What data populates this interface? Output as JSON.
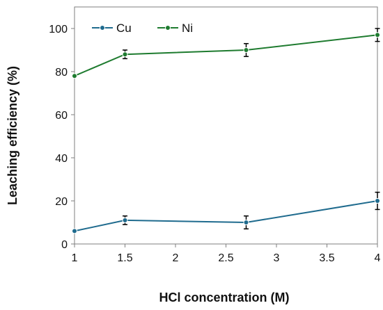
{
  "chart_data": {
    "type": "line",
    "title": "",
    "xlabel": "HCl concentration (M)",
    "ylabel": "Leaching efficiency (%)",
    "xlim": [
      1,
      4
    ],
    "ylim": [
      0,
      110
    ],
    "x_ticks": [
      1,
      1.5,
      2,
      2.5,
      3,
      3.5,
      4
    ],
    "y_ticks": [
      0,
      20,
      40,
      60,
      80,
      100
    ],
    "grid": false,
    "legend_position": "top-left",
    "x": [
      1,
      1.5,
      2.7,
      4
    ],
    "series": [
      {
        "name": "Cu",
        "color": "#1f6b8e",
        "values": [
          6,
          11,
          10,
          20
        ],
        "errors": [
          0,
          2,
          3,
          4
        ]
      },
      {
        "name": "Ni",
        "color": "#1e7b2f",
        "values": [
          78,
          88,
          90,
          97
        ],
        "errors": [
          0,
          2,
          3,
          3
        ]
      }
    ]
  }
}
